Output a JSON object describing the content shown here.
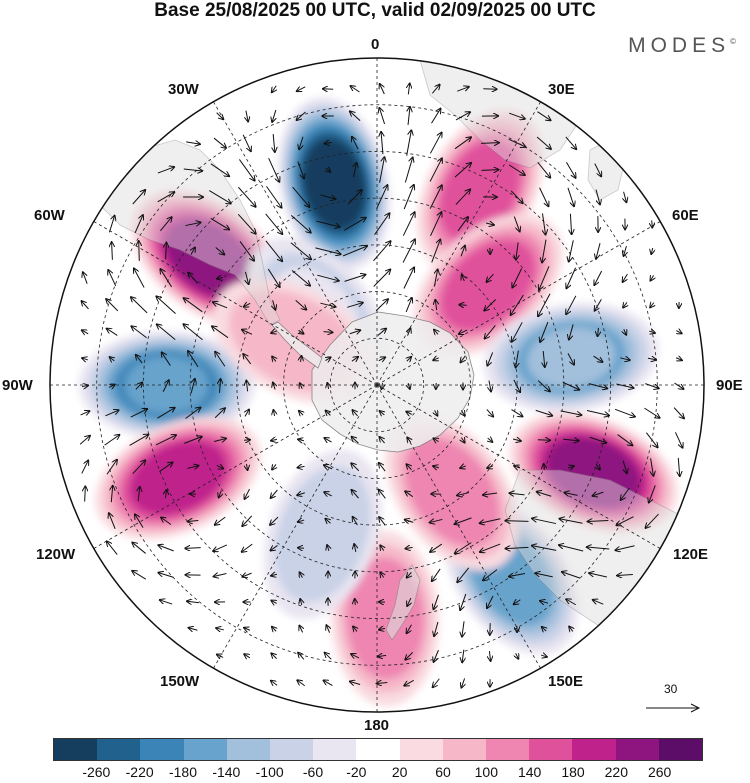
{
  "title": "Base 25/08/2025 00 UTC, valid 02/09/2025 00 UTC",
  "brand": "MODES",
  "brand_mark": "©",
  "longitude_labels": {
    "n0": "0",
    "e30": "30E",
    "e60": "60E",
    "e90": "90E",
    "e120": "120E",
    "e150": "150E",
    "s180": "180",
    "w150": "150W",
    "w120": "120W",
    "w90": "90W",
    "w60": "60W",
    "w30": "30W"
  },
  "reference_vector": {
    "label": "30",
    "icon": "arrow-right-icon"
  },
  "colorbar": {
    "colors": [
      "#153e5e",
      "#21618d",
      "#3a84b7",
      "#67a3cc",
      "#a2bfdc",
      "#c9d2e7",
      "#e9e5f1",
      "#ffffff",
      "#f9dbe1",
      "#f6b8c9",
      "#ee86b1",
      "#e0519c",
      "#c0228c",
      "#8e1480",
      "#5b0d68"
    ],
    "ticks": [
      "-260",
      "-220",
      "-180",
      "-140",
      "-100",
      "-60",
      "-20",
      "20",
      "60",
      "100",
      "140",
      "180",
      "220",
      "260"
    ]
  },
  "anomalies": [
    {
      "name": "low-south-atlantic",
      "lon": -12,
      "colat": 44,
      "value": -265
    },
    {
      "name": "high-west-atlantic",
      "lon": -53,
      "colat": 45,
      "value": 230
    },
    {
      "name": "high-southwest-indian",
      "lon": 28,
      "colat": 47,
      "value": 140
    },
    {
      "name": "low-southeast-pacific",
      "lon": -90,
      "colat": 45,
      "value": -180
    },
    {
      "name": "high-south-pacific",
      "lon": -115,
      "colat": 47,
      "value": 210
    },
    {
      "name": "high-central-indian",
      "lon": 48,
      "colat": 32,
      "value": 160
    },
    {
      "name": "low-east-indian",
      "lon": 82,
      "colat": 42,
      "value": -140
    },
    {
      "name": "high-southern-australia",
      "lon": 112,
      "colat": 50,
      "value": 220
    },
    {
      "name": "low-tasman",
      "lon": 145,
      "colat": 50,
      "value": -150
    },
    {
      "name": "high-south-of-nz",
      "lon": 178,
      "colat": 50,
      "value": 100
    },
    {
      "name": "high-ross-sea",
      "lon": 145,
      "colat": 28,
      "value": 110
    },
    {
      "name": "low-central-pacific",
      "lon": -160,
      "colat": 34,
      "value": -70
    },
    {
      "name": "low-drake",
      "lon": -40,
      "colat": 20,
      "value": -60
    },
    {
      "name": "high-drake",
      "lon": -62,
      "colat": 20,
      "value": 80
    }
  ]
}
